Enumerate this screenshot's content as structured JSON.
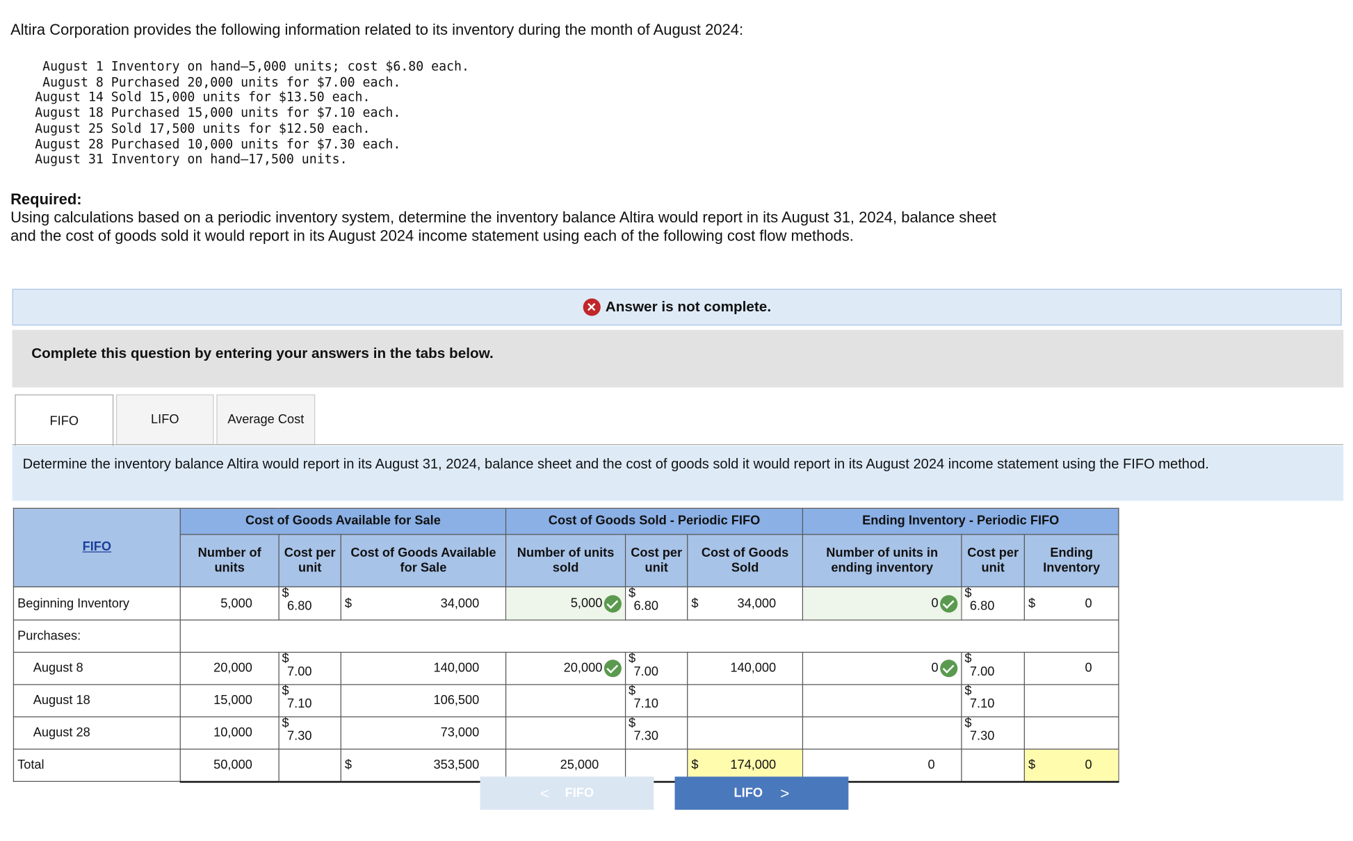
{
  "intro": "Altira Corporation provides the following information related to its inventory during the month of August 2024:",
  "transactions": [
    {
      "date": "August 1",
      "text": "Inventory on hand—5,000 units; cost $6.80 each."
    },
    {
      "date": "August 8",
      "text": "Purchased 20,000 units for $7.00 each."
    },
    {
      "date": "August 14",
      "text": "Sold 15,000 units for $13.50 each."
    },
    {
      "date": "August 18",
      "text": "Purchased 15,000 units for $7.10 each."
    },
    {
      "date": "August 25",
      "text": "Sold 17,500 units for $12.50 each."
    },
    {
      "date": "August 28",
      "text": "Purchased 10,000 units for $7.30 each."
    },
    {
      "date": "August 31",
      "text": "Inventory on hand—17,500 units."
    }
  ],
  "required": {
    "heading": "Required:",
    "text": "Using calculations based on a periodic inventory system, determine the inventory balance Altira would report in its August 31, 2024, balance sheet and the cost of goods sold it would report in its August 2024 income statement using each of the following cost flow methods."
  },
  "banner": "Answer is not complete.",
  "instruction": "Complete this question by entering your answers in the tabs below.",
  "tabs": [
    "FIFO",
    "LIFO",
    "Average Cost"
  ],
  "tab_description": "Determine the inventory balance Altira would report in its August 31, 2024, balance sheet and the cost of goods sold it would report in its August 2024 income statement using the FIFO method.",
  "table": {
    "corner": "FIFO",
    "groups": [
      "Cost of Goods Available for Sale",
      "Cost of Goods Sold - Periodic FIFO",
      "Ending Inventory - Periodic FIFO"
    ],
    "columns": [
      "Number of units",
      "Cost per unit",
      "Cost of Goods Available for Sale",
      "Number of units sold",
      "Cost per unit",
      "Cost of Goods Sold",
      "Number of units in ending inventory",
      "Cost per unit",
      "Ending Inventory"
    ],
    "rows": [
      {
        "label": "Beginning Inventory",
        "cells": [
          "5,000",
          {
            "sign": "$",
            "text": "6.80"
          },
          {
            "sign": "$",
            "text": "34,000"
          },
          "5,000",
          {
            "sign": "$",
            "text": "6.80"
          },
          {
            "sign": "$",
            "text": "34,000"
          },
          "0",
          {
            "sign": "$",
            "text": "6.80"
          },
          {
            "sign": "$",
            "text": "0"
          }
        ]
      },
      {
        "label": "Purchases:"
      },
      {
        "label": "August 8",
        "cells": [
          "20,000",
          {
            "sign": "$",
            "text": "7.00"
          },
          "140,000",
          "20,000",
          {
            "sign": "$",
            "text": "7.00"
          },
          "140,000",
          "0",
          {
            "sign": "$",
            "text": "7.00"
          },
          "0"
        ]
      },
      {
        "label": "August 18",
        "cells": [
          "15,000",
          {
            "sign": "$",
            "text": "7.10"
          },
          "106,500",
          null,
          {
            "sign": "$",
            "text": "7.10"
          },
          null,
          null,
          {
            "sign": "$",
            "text": "7.10"
          },
          null
        ]
      },
      {
        "label": "August 28",
        "cells": [
          "10,000",
          {
            "sign": "$",
            "text": "7.30"
          },
          "73,000",
          null,
          {
            "sign": "$",
            "text": "7.30"
          },
          null,
          null,
          {
            "sign": "$",
            "text": "7.30"
          },
          null
        ]
      },
      {
        "label": "Total",
        "cells": [
          "50,000",
          null,
          {
            "sign": "$",
            "text": "353,500"
          },
          "25,000",
          null,
          {
            "sign": "$",
            "text": "174,000"
          },
          "0",
          null,
          {
            "sign": "$",
            "text": "0"
          }
        ]
      }
    ]
  },
  "buttons": {
    "prev": "FIFO",
    "next": "LIFO"
  }
}
